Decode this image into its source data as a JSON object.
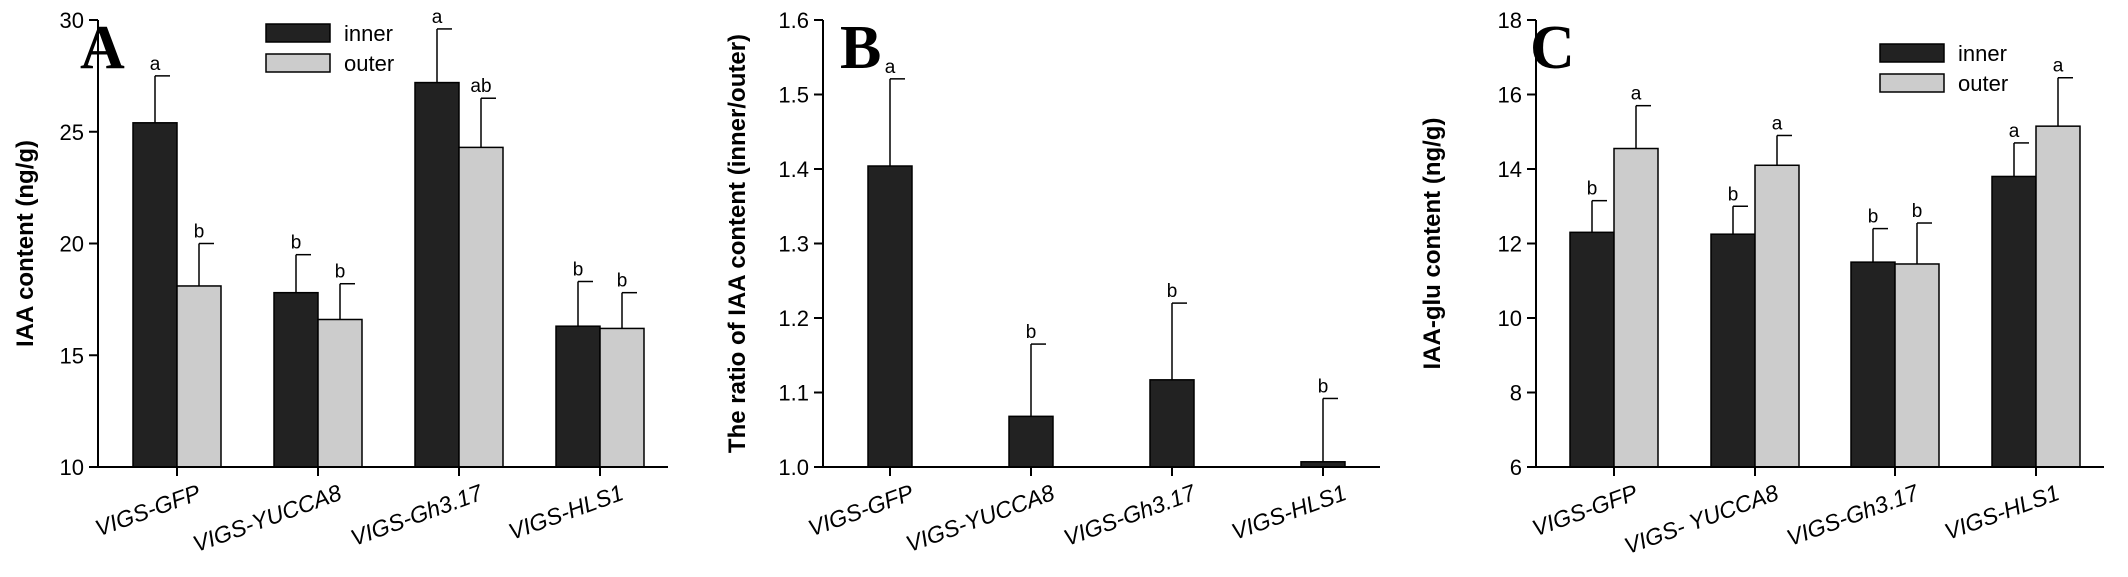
{
  "colors": {
    "inner": "#222222",
    "outer": "#cccccc",
    "axis": "#000000"
  },
  "chart_data": [
    {
      "type": "bar",
      "panel": "A",
      "ylabel": "IAA content (ng/g)",
      "ylim": [
        10,
        30
      ],
      "yticks": [
        10,
        15,
        20,
        25,
        30
      ],
      "categories": [
        "VIGS-GFP",
        "VIGS-YUCCA8",
        "VIGS-Gh3.17",
        "VIGS-HLS1"
      ],
      "legend": {
        "position": "top-right"
      },
      "series": [
        {
          "name": "inner",
          "values": [
            25.4,
            17.8,
            27.2,
            16.3
          ],
          "errors": [
            2.1,
            1.7,
            2.4,
            2.0
          ],
          "sig": [
            "a",
            "b",
            "a",
            "b"
          ]
        },
        {
          "name": "outer",
          "values": [
            18.1,
            16.6,
            24.3,
            16.2
          ],
          "errors": [
            1.9,
            1.6,
            2.2,
            1.6
          ],
          "sig": [
            "b",
            "b",
            "ab",
            "b"
          ]
        }
      ]
    },
    {
      "type": "bar",
      "panel": "B",
      "ylabel": "The ratio of IAA content (inner/outer)",
      "ylim": [
        1.0,
        1.6
      ],
      "yticks": [
        "1.0",
        "1.1",
        "1.2",
        "1.3",
        "1.4",
        "1.5",
        "1.6"
      ],
      "categories": [
        "VIGS-GFP",
        "VIGS-YUCCA8",
        "VIGS-Gh3.17",
        "VIGS-HLS1"
      ],
      "series": [
        {
          "values": [
            1.404,
            1.068,
            1.117,
            1.007
          ],
          "errors": [
            0.117,
            0.097,
            0.103,
            0.085
          ],
          "sig": [
            "a",
            "b",
            "b",
            "b"
          ]
        }
      ]
    },
    {
      "type": "bar",
      "panel": "C",
      "ylabel": "IAA-glu content (ng/g)",
      "ylim": [
        6,
        18
      ],
      "yticks": [
        6,
        8,
        10,
        12,
        14,
        16,
        18
      ],
      "categories": [
        "VIGS-GFP",
        "VIGS- YUCCA8",
        "VIGS-Gh3.17",
        "VIGS-HLS1"
      ],
      "legend": {
        "position": "top-right"
      },
      "series": [
        {
          "name": "inner",
          "values": [
            12.3,
            12.25,
            11.5,
            13.8
          ],
          "errors": [
            0.85,
            0.75,
            0.9,
            0.9
          ],
          "sig": [
            "b",
            "b",
            "b",
            "a"
          ]
        },
        {
          "name": "outer",
          "values": [
            14.55,
            14.1,
            11.45,
            15.15
          ],
          "errors": [
            1.15,
            0.8,
            1.1,
            1.3
          ],
          "sig": [
            "a",
            "a",
            "b",
            "a"
          ]
        }
      ]
    }
  ]
}
